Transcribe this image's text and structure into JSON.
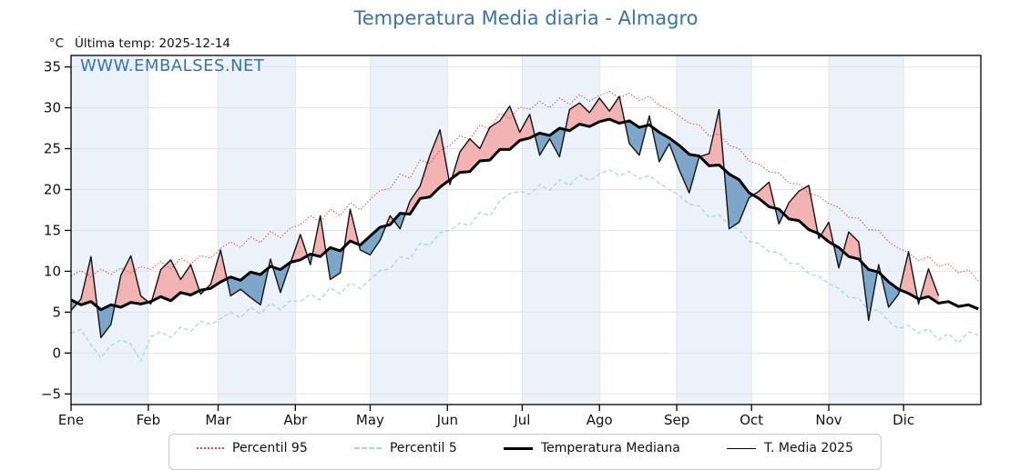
{
  "title": "Temperatura Media diaria - Almagro",
  "unit_label": "°C",
  "last_temp_label": "Última temp: 2025-12-14",
  "watermark": "WWW.EMBALSES.NET",
  "legend": [
    {
      "label": "Percentil 95"
    },
    {
      "label": "Percentil 5"
    },
    {
      "label": "Temperatura Mediana"
    },
    {
      "label": "T. Media 2025"
    }
  ],
  "chart_data": {
    "type": "line",
    "title": "Temperatura Media diaria - Almagro",
    "xlabel": "",
    "ylabel": "°C",
    "legend_position": "bottom",
    "grid": true,
    "grid_color": "#e3e3e3",
    "frame_color": "#000000",
    "xlim_days": [
      0,
      365
    ],
    "ylim": [
      -6.3,
      36.4
    ],
    "x_ticks": [
      {
        "label": "Ene",
        "day": 0
      },
      {
        "label": "Feb",
        "day": 31
      },
      {
        "label": "Mar",
        "day": 59
      },
      {
        "label": "Abr",
        "day": 90
      },
      {
        "label": "May",
        "day": 120
      },
      {
        "label": "Jun",
        "day": 151
      },
      {
        "label": "Jul",
        "day": 181
      },
      {
        "label": "Ago",
        "day": 212
      },
      {
        "label": "Sep",
        "day": 243
      },
      {
        "label": "Oct",
        "day": 273
      },
      {
        "label": "Nov",
        "day": 304
      },
      {
        "label": "Dic",
        "day": 334
      }
    ],
    "y_ticks": [
      {
        "label": "35",
        "value": 35
      },
      {
        "label": "30",
        "value": 30
      },
      {
        "label": "25",
        "value": 25
      },
      {
        "label": "20",
        "value": 20
      },
      {
        "label": "15",
        "value": 15
      },
      {
        "label": "10",
        "value": 10
      },
      {
        "label": "5",
        "value": 5
      },
      {
        "label": "0",
        "value": 0
      },
      {
        "label": "−5",
        "value": -5
      }
    ],
    "month_bands": {
      "starts": [
        0,
        31,
        59,
        90,
        120,
        151,
        181,
        212,
        243,
        273,
        304,
        334,
        365
      ],
      "shaded_months": [
        0,
        2,
        4,
        6,
        8,
        10
      ],
      "color": "#ecf2f9"
    },
    "anchor_step_days": 4,
    "fills": {
      "between": [
        "T. Media 2025",
        "Temperatura Mediana"
      ],
      "above_color": "#f4b3b3",
      "below_color": "#7ea6cb"
    },
    "series": [
      {
        "name": "Percentil 95",
        "color": "#e04444",
        "dash": "1.3 2.2",
        "width": 1.1,
        "values": [
          9.4,
          10.1,
          9.3,
          10.3,
          9.6,
          10.4,
          9.8,
          10.6,
          10.2,
          11.2,
          10.3,
          11.6,
          10.9,
          11.9,
          11.6,
          12.8,
          13.6,
          12.9,
          14.2,
          13.5,
          14.9,
          14.1,
          15.3,
          15.7,
          16.8,
          16.0,
          17.6,
          16.8,
          18.4,
          17.5,
          18.8,
          19.9,
          20.1,
          21.9,
          21.4,
          23.6,
          23.2,
          24.8,
          25.4,
          26.6,
          26.1,
          27.9,
          27.4,
          29.3,
          28.7,
          30.1,
          29.8,
          30.8,
          30.0,
          31.2,
          30.4,
          31.6,
          30.8,
          31.5,
          32.0,
          31.2,
          31.8,
          30.9,
          31.4,
          30.3,
          29.8,
          29.0,
          28.1,
          27.9,
          26.5,
          26.8,
          25.4,
          25.0,
          23.5,
          23.1,
          22.2,
          22.0,
          20.8,
          20.7,
          19.5,
          19.2,
          18.3,
          17.8,
          16.6,
          16.5,
          15.1,
          15.0,
          13.6,
          12.8,
          12.3,
          11.3,
          11.8,
          10.6,
          10.9,
          9.8,
          10.2,
          8.8
        ]
      },
      {
        "name": "Percentil 5",
        "color": "#a9d3e8",
        "dash": "4.5 3",
        "width": 1.3,
        "values": [
          2.4,
          2.9,
          1.0,
          -0.6,
          0.9,
          1.6,
          1.1,
          -1.0,
          2.0,
          2.6,
          1.9,
          3.2,
          2.7,
          3.9,
          3.5,
          4.2,
          5.0,
          4.3,
          5.6,
          4.8,
          6.1,
          5.3,
          6.4,
          6.3,
          7.2,
          6.5,
          8.0,
          7.2,
          8.6,
          7.9,
          9.0,
          10.1,
          10.3,
          11.8,
          11.5,
          13.4,
          13.2,
          14.7,
          15.0,
          15.9,
          15.6,
          17.2,
          16.8,
          18.6,
          19.5,
          19.8,
          19.4,
          20.6,
          19.9,
          21.2,
          20.5,
          21.8,
          21.1,
          21.9,
          22.4,
          21.7,
          22.2,
          21.3,
          21.7,
          20.8,
          20.0,
          19.3,
          18.2,
          18.0,
          16.6,
          16.9,
          15.6,
          15.1,
          13.7,
          13.4,
          12.4,
          12.3,
          11.0,
          10.9,
          9.7,
          9.4,
          8.5,
          7.9,
          6.8,
          6.7,
          5.2,
          5.3,
          3.9,
          3.0,
          3.4,
          2.4,
          3.0,
          1.6,
          2.4,
          1.2,
          2.6,
          2.2
        ]
      },
      {
        "name": "Temperatura Mediana",
        "color": "#000000",
        "dash": "",
        "width": 3,
        "values": [
          6.5,
          5.9,
          6.3,
          5.3,
          5.9,
          5.6,
          6.2,
          6.0,
          6.3,
          6.9,
          6.4,
          7.4,
          7.1,
          7.7,
          7.9,
          8.7,
          9.3,
          8.9,
          9.9,
          9.6,
          10.6,
          10.2,
          11.1,
          11.4,
          12.1,
          11.8,
          12.9,
          12.5,
          13.7,
          13.2,
          14.3,
          15.4,
          15.7,
          17.1,
          17.0,
          18.9,
          19.1,
          20.3,
          21.2,
          22.1,
          22.2,
          23.5,
          23.6,
          24.9,
          24.9,
          26.0,
          26.3,
          26.9,
          26.6,
          27.5,
          27.2,
          28.0,
          27.7,
          28.3,
          28.6,
          28.1,
          28.4,
          27.6,
          27.9,
          27.0,
          26.3,
          25.4,
          24.3,
          24.1,
          22.9,
          23.0,
          21.9,
          21.2,
          19.6,
          18.9,
          17.9,
          17.6,
          16.4,
          16.2,
          15.1,
          14.6,
          13.6,
          12.9,
          11.8,
          11.5,
          10.2,
          9.9,
          8.7,
          7.8,
          7.3,
          6.6,
          6.9,
          6.1,
          6.3,
          5.7,
          5.9,
          5.4
        ]
      },
      {
        "name": "T. Media 2025",
        "color": "#111111",
        "dash": "",
        "width": 1.4,
        "values": [
          5.2,
          6.6,
          11.8,
          1.9,
          3.5,
          9.5,
          11.9,
          7.0,
          6.0,
          10.2,
          11.4,
          9.0,
          10.8,
          7.2,
          8.4,
          12.6,
          7.0,
          7.8,
          6.8,
          5.9,
          11.5,
          7.4,
          11.0,
          14.5,
          10.8,
          16.8,
          9.0,
          9.8,
          17.6,
          12.6,
          12.0,
          13.8,
          16.8,
          15.2,
          18.6,
          20.4,
          24.2,
          27.3,
          20.6,
          24.6,
          26.2,
          25.0,
          27.6,
          28.4,
          30.2,
          27.0,
          29.2,
          24.2,
          26.2,
          24.0,
          29.8,
          30.6,
          29.4,
          31.2,
          29.6,
          31.4,
          25.6,
          24.2,
          29.0,
          23.4,
          25.6,
          22.4,
          19.6,
          24.0,
          24.4,
          29.8,
          15.2,
          16.0,
          19.0,
          19.8,
          20.9,
          15.8,
          18.4,
          19.8,
          20.5,
          14.0,
          16.0,
          10.4,
          14.8,
          13.6,
          4.0,
          10.8,
          5.6,
          7.2,
          12.4,
          6.0,
          10.3,
          7.0
        ]
      }
    ]
  }
}
